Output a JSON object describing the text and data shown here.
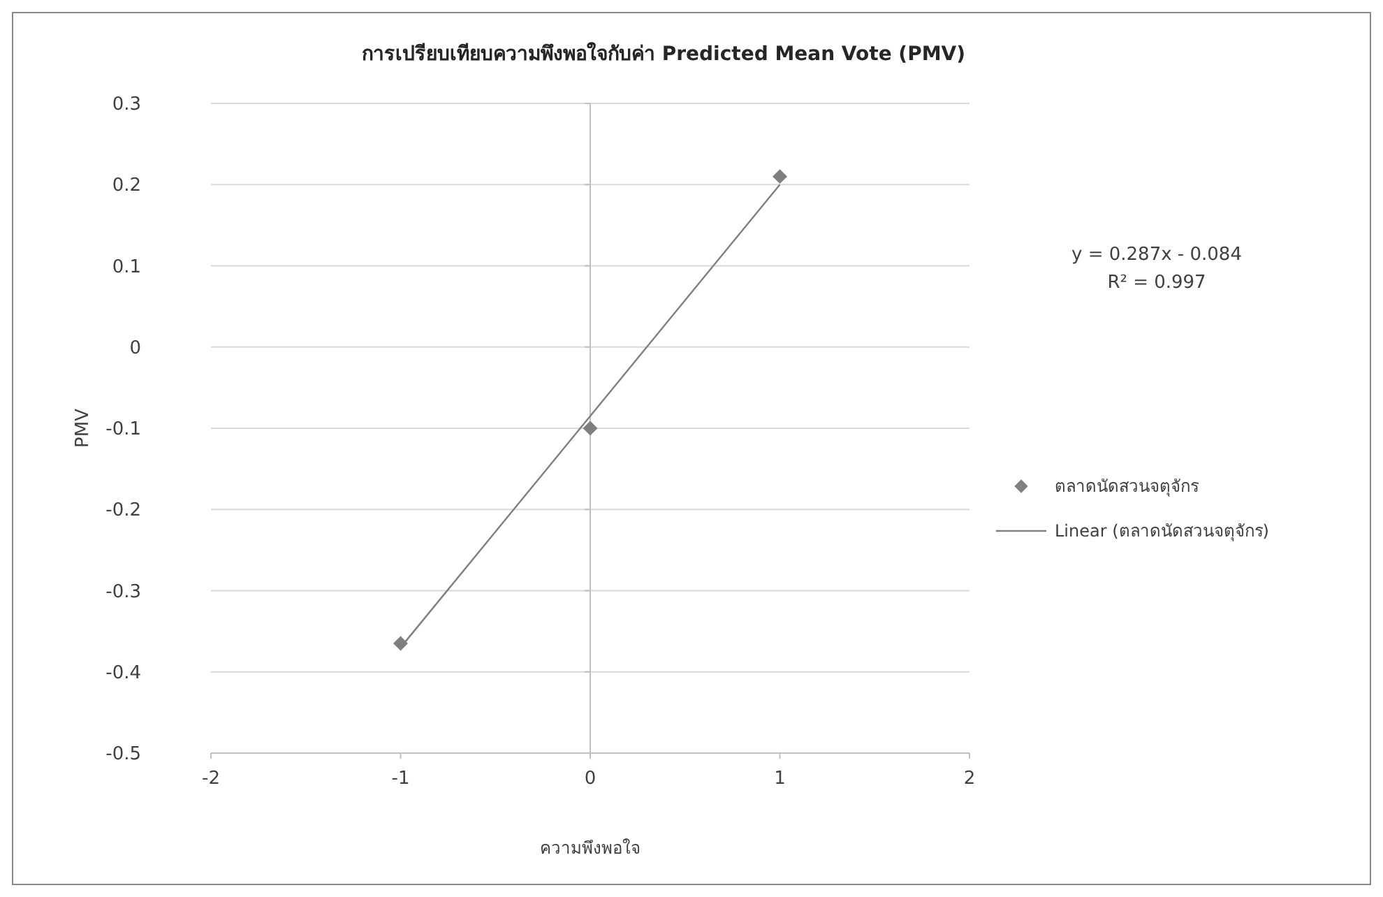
{
  "chart_data": {
    "type": "scatter",
    "title": "การเปรียบเทียบความพึงพอใจกับค่า Predicted Mean Vote (PMV)",
    "xlabel": "ความพึงพอใจ",
    "ylabel": "PMV",
    "xlim": [
      -2,
      2
    ],
    "xticks": [
      -2,
      -1,
      0,
      1,
      2
    ],
    "ylim": [
      -0.5,
      0.3
    ],
    "yticks": [
      -0.5,
      -0.4,
      -0.3,
      -0.2,
      -0.1,
      0,
      0.1,
      0.2,
      0.3
    ],
    "grid": "y",
    "legend": "right",
    "series": [
      {
        "name": "ตลาดนัดสวนจตุจักร",
        "color": "#7f7f7f",
        "marker": "diamond",
        "x": [
          -1,
          0,
          1
        ],
        "values": [
          -0.365,
          -0.1,
          0.21
        ]
      },
      {
        "name": "Linear (ตลาดนัดสวนจตุจักร)",
        "type": "line",
        "color": "#7f7f7f",
        "marker": "none",
        "line_style": "solid",
        "x": [
          -1,
          1
        ],
        "values": [
          -0.37,
          0.2
        ]
      }
    ],
    "annotations": [
      "y = 0.287x - 0.084",
      "R² = 0.997"
    ]
  }
}
